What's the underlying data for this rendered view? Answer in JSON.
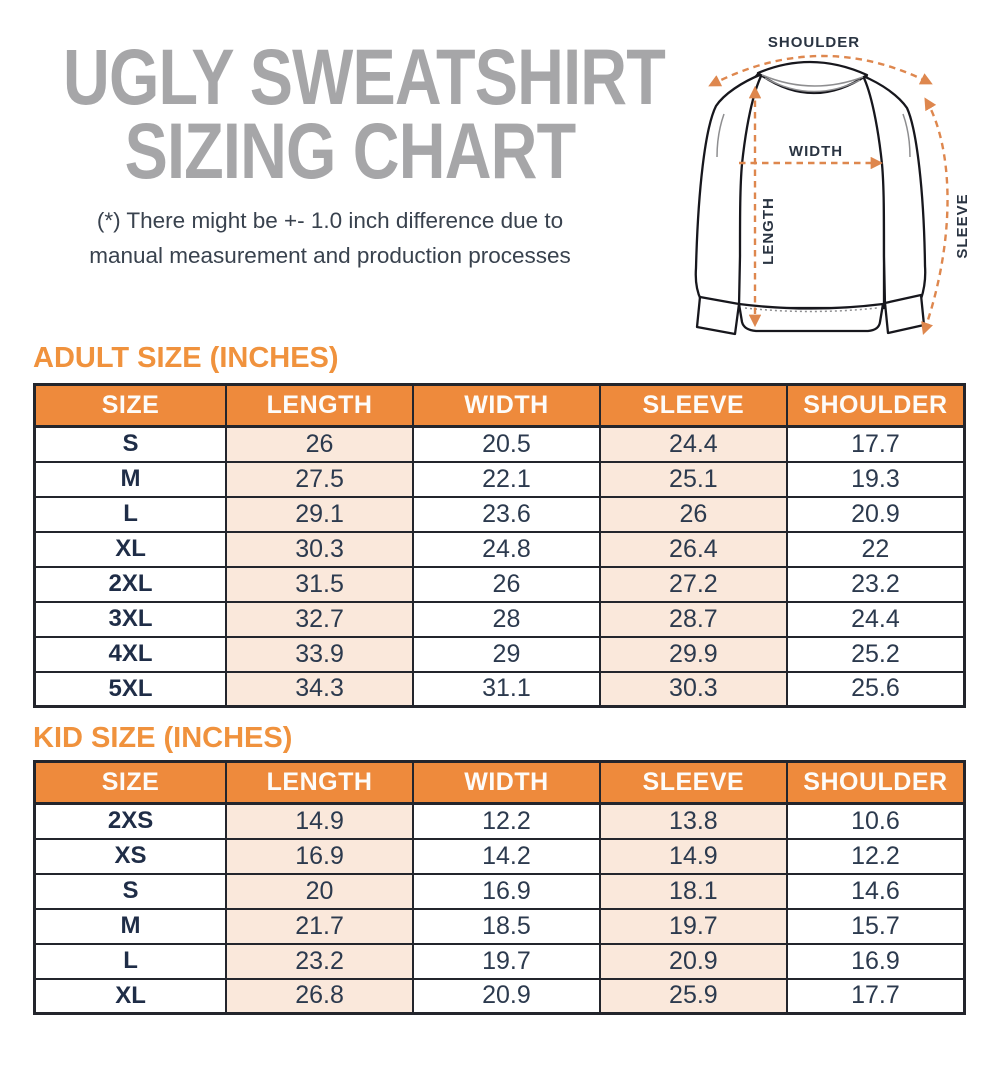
{
  "page": {
    "title_line1": "UGLY SWEATSHIRT",
    "title_line2": "SIZING CHART",
    "disclaimer_line1": "(*) There might be +- 1.0 inch difference due to",
    "disclaimer_line2": "manual measurement and production processes"
  },
  "diagram": {
    "labels": {
      "shoulder": "SHOULDER",
      "width": "WIDTH",
      "length": "LENGTH",
      "sleeve": "SLEEVE"
    }
  },
  "colors": {
    "title_gray": "#a6a6a8",
    "body_text_dark": "#39424e",
    "section_heading_orange": "#f0923d",
    "table_header_orange": "#ee8a3c",
    "row_tint_peach": "#fae8db",
    "table_text_navy": "#2c3a4e",
    "table_border_dark": "#23252c",
    "diagram_dash_orange": "#de874e"
  },
  "chart_data": [
    {
      "type": "table",
      "title": "ADULT SIZE (INCHES)",
      "columns": [
        "SIZE",
        "LENGTH",
        "WIDTH",
        "SLEEVE",
        "SHOULDER"
      ],
      "rows": [
        [
          "S",
          "26",
          "20.5",
          "24.4",
          "17.7"
        ],
        [
          "M",
          "27.5",
          "22.1",
          "25.1",
          "19.3"
        ],
        [
          "L",
          "29.1",
          "23.6",
          "26",
          "20.9"
        ],
        [
          "XL",
          "30.3",
          "24.8",
          "26.4",
          "22"
        ],
        [
          "2XL",
          "31.5",
          "26",
          "27.2",
          "23.2"
        ],
        [
          "3XL",
          "32.7",
          "28",
          "28.7",
          "24.4"
        ],
        [
          "4XL",
          "33.9",
          "29",
          "29.9",
          "25.2"
        ],
        [
          "5XL",
          "34.3",
          "31.1",
          "30.3",
          "25.6"
        ]
      ]
    },
    {
      "type": "table",
      "title": "KID SIZE (INCHES)",
      "columns": [
        "SIZE",
        "LENGTH",
        "WIDTH",
        "SLEEVE",
        "SHOULDER"
      ],
      "rows": [
        [
          "2XS",
          "14.9",
          "12.2",
          "13.8",
          "10.6"
        ],
        [
          "XS",
          "16.9",
          "14.2",
          "14.9",
          "12.2"
        ],
        [
          "S",
          "20",
          "16.9",
          "18.1",
          "14.6"
        ],
        [
          "M",
          "21.7",
          "18.5",
          "19.7",
          "15.7"
        ],
        [
          "L",
          "23.2",
          "19.7",
          "20.9",
          "16.9"
        ],
        [
          "XL",
          "26.8",
          "20.9",
          "25.9",
          "17.7"
        ]
      ]
    }
  ]
}
